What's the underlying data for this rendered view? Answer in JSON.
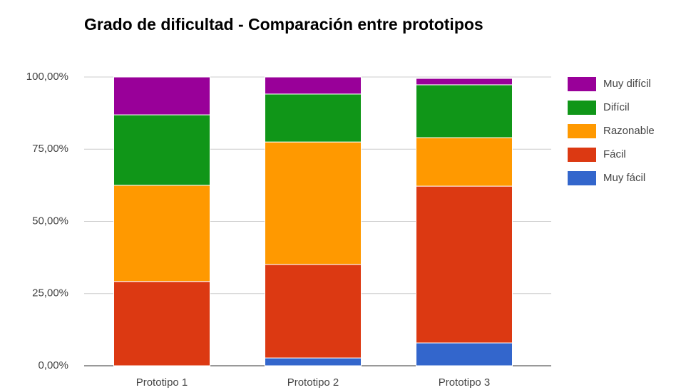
{
  "chart_data": {
    "type": "stacked_bar",
    "title": "Grado de dificultad - Comparación entre prototipos",
    "categories": [
      "Prototipo 1",
      "Prototipo 2",
      "Prototipo 3"
    ],
    "series": [
      {
        "name": "Muy fácil",
        "color": "#3366cc",
        "values": [
          0,
          2.7,
          7.9
        ]
      },
      {
        "name": "Fácil",
        "color": "#dc3912",
        "values": [
          29.2,
          32.4,
          54.3
        ]
      },
      {
        "name": "Razonable",
        "color": "#ff9900",
        "values": [
          33.3,
          42.4,
          16.8
        ]
      },
      {
        "name": "Difícil",
        "color": "#109618",
        "values": [
          24.4,
          16.6,
          18.3
        ]
      },
      {
        "name": "Muy difícil",
        "color": "#990099",
        "values": [
          13.1,
          5.9,
          2.2
        ]
      }
    ],
    "ylim": [
      0,
      100
    ],
    "yticks": [
      {
        "value": 0,
        "label": "0,00%"
      },
      {
        "value": 25,
        "label": "25,00%"
      },
      {
        "value": 50,
        "label": "50,00%"
      },
      {
        "value": 75,
        "label": "75,00%"
      },
      {
        "value": 100,
        "label": "100,00%"
      }
    ],
    "grid": true,
    "legend": "right"
  }
}
